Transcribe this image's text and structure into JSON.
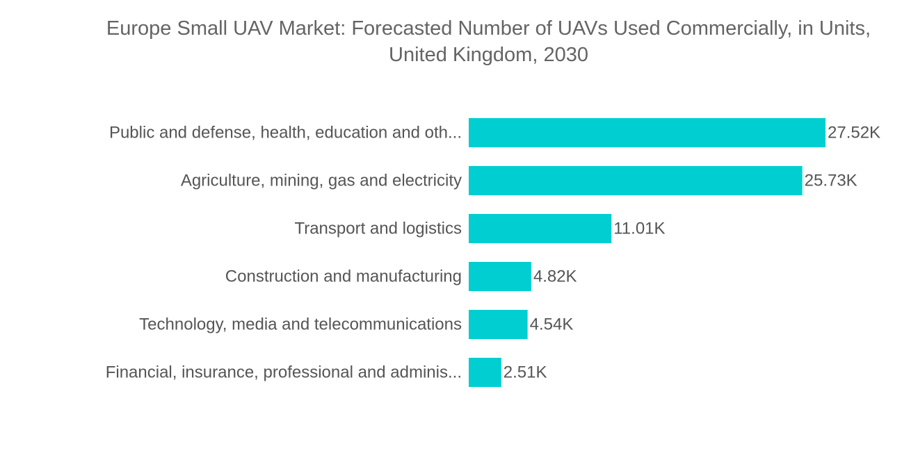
{
  "chart_data": {
    "type": "bar",
    "orientation": "horizontal",
    "title": "Europe Small UAV Market: Forecasted Number of UAVs Used Commercially, in Units, United Kingdom, 2030",
    "title_lines": [
      "Europe Small UAV Market: Forecasted Number of UAVs Used Commercially, in Units,",
      "United Kingdom, 2030"
    ],
    "categories": [
      "Public and defense, health, education and oth...",
      "Agriculture, mining, gas and electricity",
      "Transport and logistics",
      "Construction and manufacturing",
      "Technology, media and telecommunications",
      "Financial, insurance, professional and adminis..."
    ],
    "values": [
      27.52,
      25.73,
      11.01,
      4.82,
      4.54,
      2.51
    ],
    "value_labels": [
      "27.52K",
      "25.73K",
      "11.01K",
      "4.82K",
      "4.54K",
      "2.51K"
    ],
    "unit": "K",
    "xlim": [
      0,
      27.52
    ],
    "grid": false,
    "legend": "none",
    "bar_color": "#00CED1"
  }
}
